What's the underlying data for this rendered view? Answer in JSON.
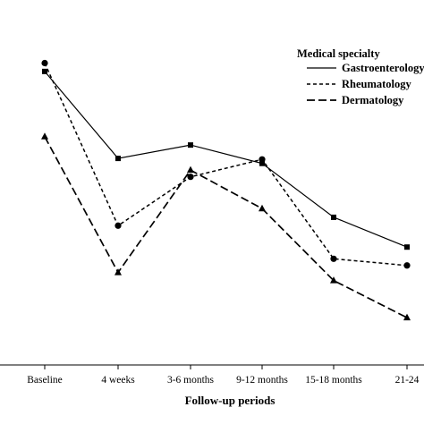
{
  "chart_data": {
    "type": "line",
    "categories": [
      "Baseline",
      "4 weeks",
      "3-6 months",
      "9-12 months",
      "15-18 months",
      "21-24"
    ],
    "xlabel": "Follow-up periods",
    "ylabel": "",
    "ylim": [
      0,
      100
    ],
    "grid": false,
    "legend": {
      "title": "Medical specialty",
      "position": "top-right",
      "entries": [
        "Gastroenterology",
        "Rheumatology",
        "Dermatology"
      ]
    },
    "series": [
      {
        "name": "Gastroenterology",
        "line_style": "solid",
        "marker": "square",
        "values": [
          85.6,
          59.6,
          63.6,
          58.1,
          42.0,
          33.1
        ]
      },
      {
        "name": "Rheumatology",
        "line_style": "dotted",
        "marker": "circle",
        "values": [
          88.1,
          39.5,
          54.1,
          59.3,
          29.6,
          27.6
        ]
      },
      {
        "name": "Dermatology",
        "line_style": "dashed",
        "marker": "triangle",
        "values": [
          66.1,
          25.5,
          56.1,
          44.6,
          23.1,
          12.0
        ]
      }
    ]
  }
}
